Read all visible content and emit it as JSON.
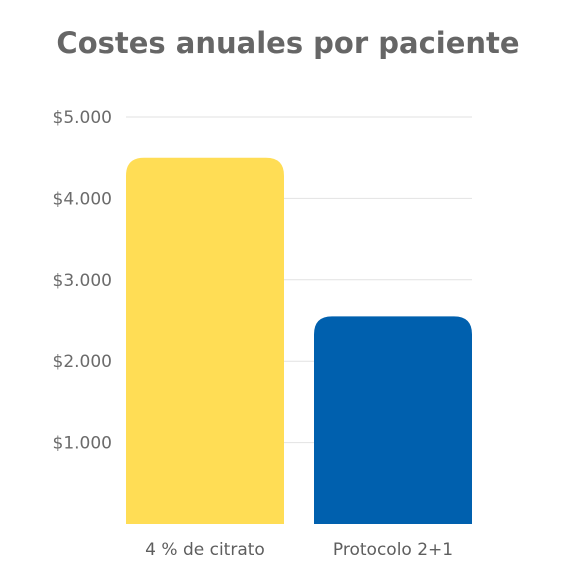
{
  "chart_data": {
    "type": "bar",
    "title": "Costes anuales por paciente",
    "categories": [
      "4 % de citrato",
      "Protocolo 2+1"
    ],
    "values": [
      4500,
      2550
    ],
    "colors": [
      "#FFDD55",
      "#0060AE"
    ],
    "ylim": [
      0,
      5000
    ],
    "yticks": [
      {
        "value": 1000,
        "label": "$1.000"
      },
      {
        "value": 2000,
        "label": "$2.000"
      },
      {
        "value": 3000,
        "label": "$3.000"
      },
      {
        "value": 4000,
        "label": "$4.000"
      },
      {
        "value": 5000,
        "label": "$5.000"
      }
    ],
    "grid": true,
    "gridColor": "#e2e2e2"
  }
}
